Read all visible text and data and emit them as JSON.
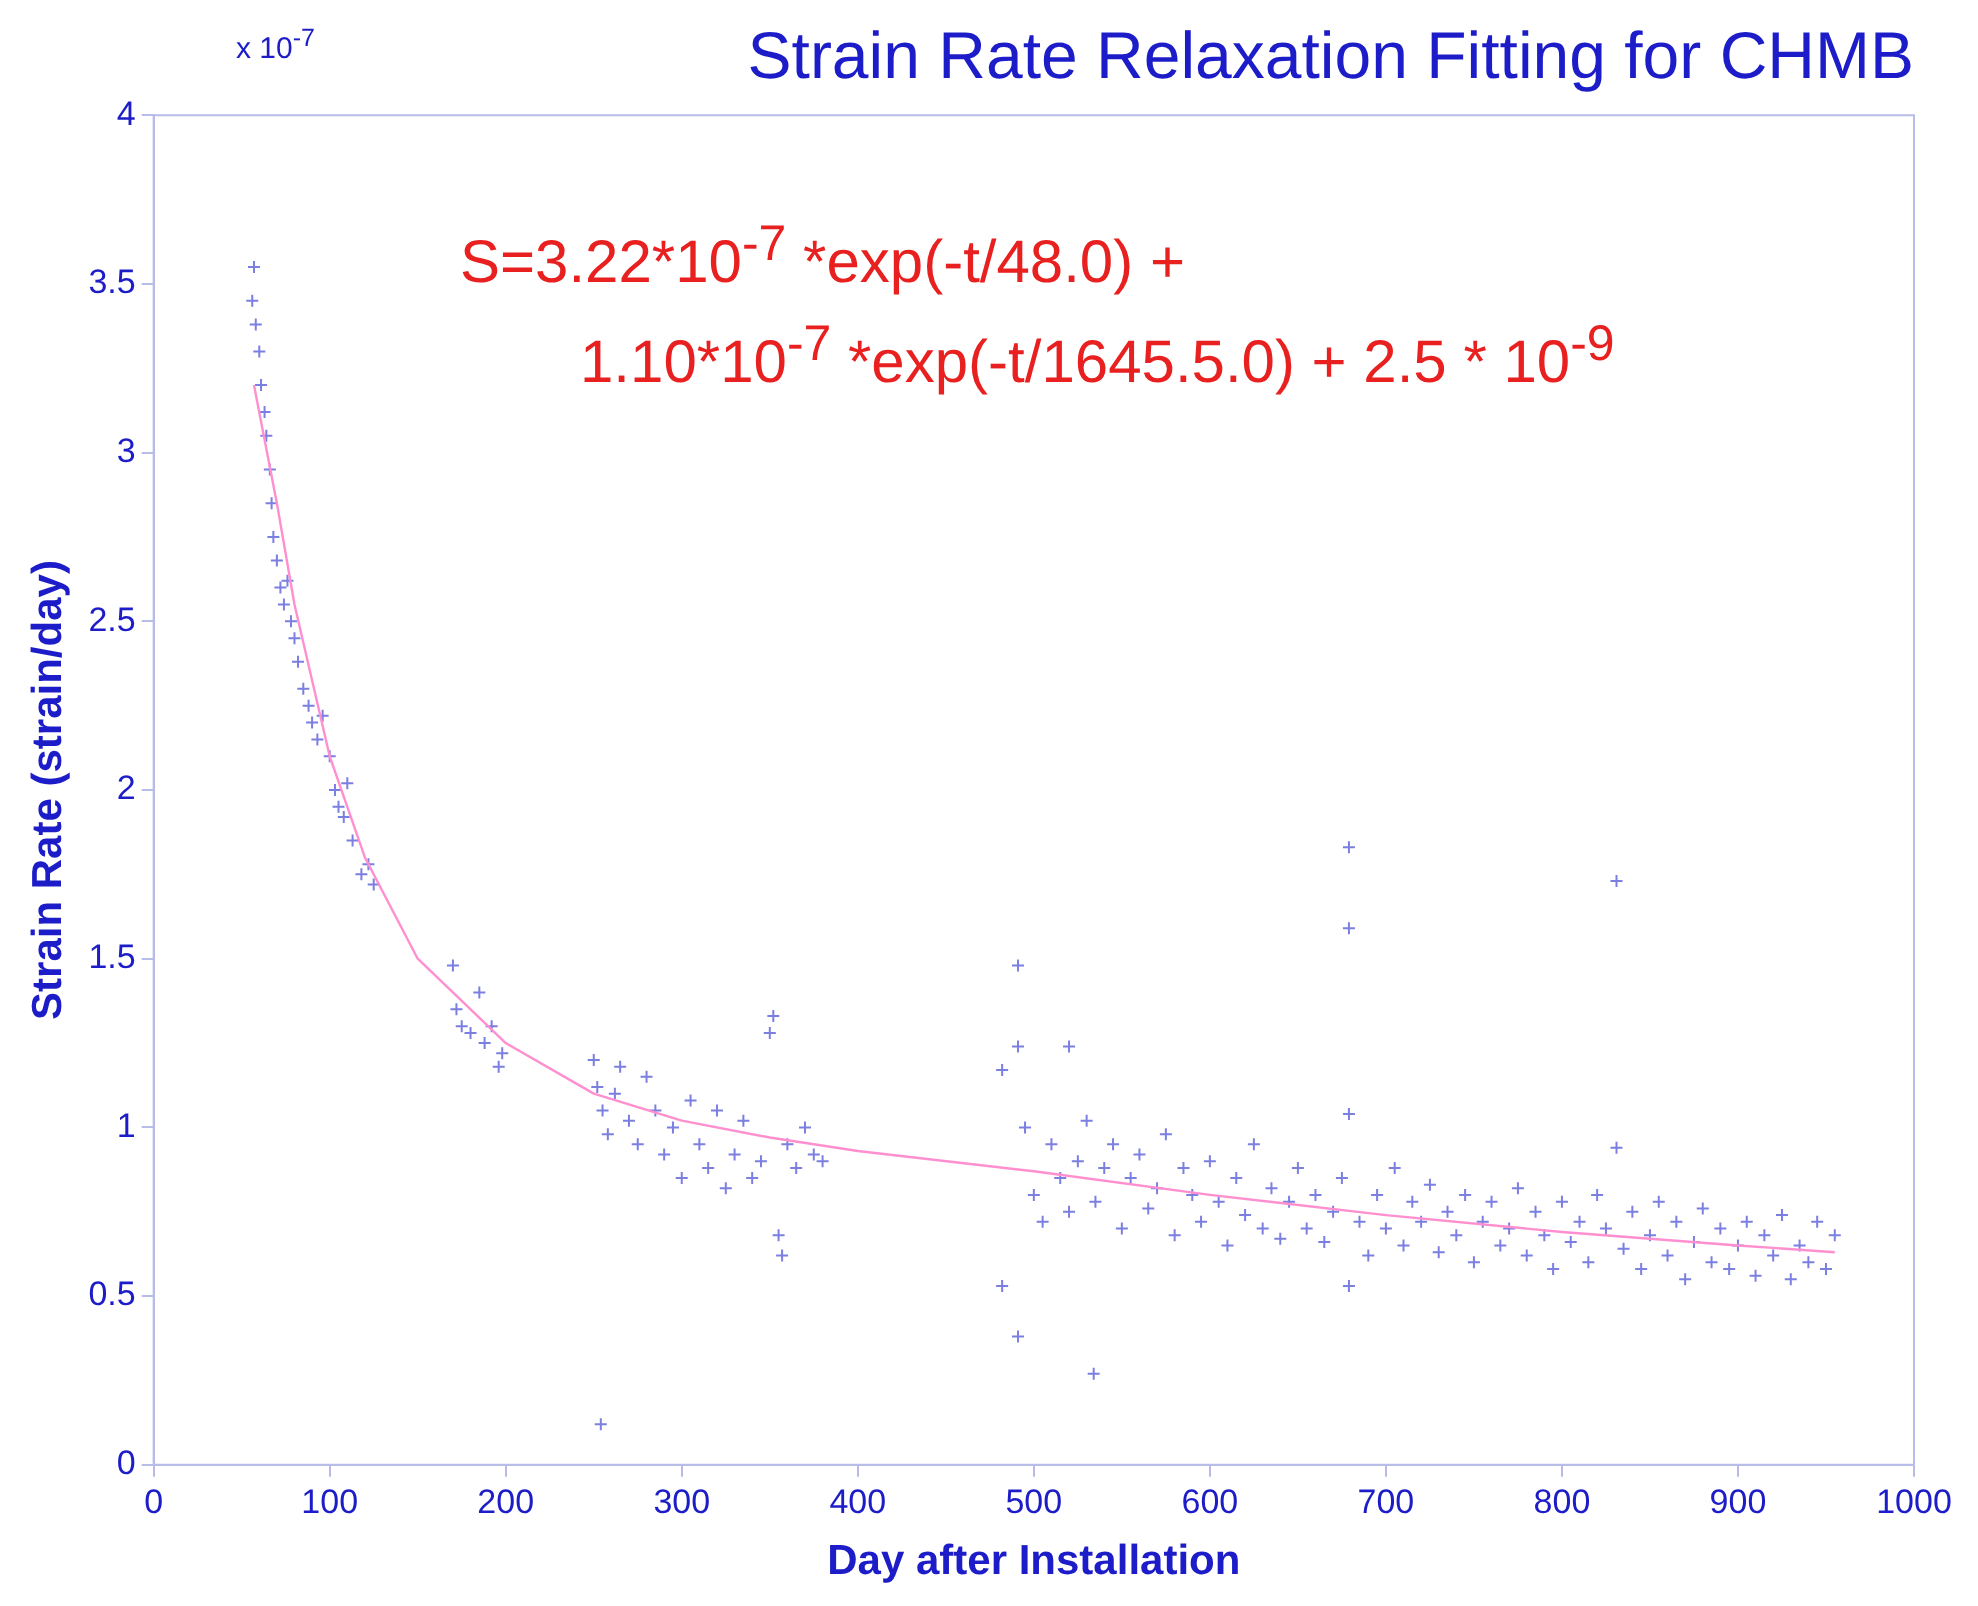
{
  "chart_data": {
    "type": "scatter",
    "title": "Strain Rate Relaxation Fitting for CHMB",
    "xlabel": "Day after Installation",
    "ylabel": "Strain Rate (strain/day)",
    "annotations": [
      "x 10$^{-7}$",
      "S=3.22*10$^{-7}$ *exp(-t/48.0) +",
      "1.10*10$^{-7}$ *exp(-t/1645.5.0) + 2.5 * 10$^{-9}$"
    ],
    "xlim": [
      0,
      1000
    ],
    "xticks": [
      0,
      100,
      200,
      300,
      400,
      500,
      600,
      700,
      800,
      900,
      1000
    ],
    "ylim": [
      0,
      4
    ],
    "yticks": [
      0,
      0.5,
      1,
      1.5,
      2,
      2.5,
      3,
      3.5,
      4
    ],
    "grid": false,
    "legend": false,
    "series": [
      {
        "color": "#7b7fe0",
        "marker": "cross",
        "x": [
          57,
          56,
          58,
          60,
          61,
          63,
          64,
          66,
          67,
          68,
          70,
          72,
          74,
          76,
          78,
          80,
          82,
          85,
          88,
          90,
          93,
          96,
          100,
          103,
          105,
          108,
          110,
          113,
          118,
          122,
          125,
          170,
          172,
          175,
          180,
          185,
          188,
          192,
          196,
          198,
          250,
          252,
          255,
          258,
          262,
          265,
          270,
          275,
          280,
          285,
          290,
          295,
          300,
          305,
          310,
          315,
          320,
          325,
          330,
          335,
          340,
          345,
          350,
          352,
          355,
          357,
          360,
          365,
          370,
          375,
          380,
          254,
          482,
          482,
          491,
          491,
          491,
          520,
          534,
          679,
          679,
          679,
          679,
          831,
          831,
          495,
          500,
          505,
          510,
          515,
          520,
          525,
          530,
          535,
          540,
          545,
          550,
          555,
          560,
          565,
          570,
          575,
          580,
          585,
          590,
          595,
          600,
          605,
          610,
          615,
          620,
          625,
          630,
          635,
          640,
          645,
          650,
          655,
          660,
          665,
          670,
          675,
          685,
          690,
          695,
          700,
          705,
          710,
          715,
          720,
          725,
          730,
          735,
          740,
          745,
          750,
          755,
          760,
          765,
          770,
          775,
          780,
          785,
          790,
          795,
          800,
          805,
          810,
          815,
          820,
          825,
          835,
          840,
          845,
          850,
          855,
          860,
          865,
          870,
          875,
          880,
          885,
          890,
          895,
          900,
          905,
          910,
          915,
          920,
          925,
          930,
          935,
          940,
          945,
          950,
          955
        ],
        "values": [
          3.55,
          3.45,
          3.38,
          3.3,
          3.2,
          3.12,
          3.05,
          2.95,
          2.85,
          2.75,
          2.68,
          2.6,
          2.55,
          2.62,
          2.5,
          2.45,
          2.38,
          2.3,
          2.25,
          2.2,
          2.15,
          2.22,
          2.1,
          2.0,
          1.95,
          1.92,
          2.02,
          1.85,
          1.75,
          1.78,
          1.72,
          1.48,
          1.35,
          1.3,
          1.28,
          1.4,
          1.25,
          1.3,
          1.18,
          1.22,
          1.2,
          1.12,
          1.05,
          0.98,
          1.1,
          1.18,
          1.02,
          0.95,
          1.15,
          1.05,
          0.92,
          1.0,
          0.85,
          1.08,
          0.95,
          0.88,
          1.05,
          0.82,
          0.92,
          1.02,
          0.85,
          0.9,
          1.28,
          1.33,
          0.68,
          0.62,
          0.95,
          0.88,
          1.0,
          0.92,
          0.9,
          0.12,
          1.17,
          0.53,
          1.48,
          1.24,
          0.38,
          1.24,
          0.27,
          1.83,
          1.59,
          1.04,
          0.53,
          1.73,
          0.94,
          1.0,
          0.8,
          0.72,
          0.95,
          0.85,
          0.75,
          0.9,
          1.02,
          0.78,
          0.88,
          0.95,
          0.7,
          0.85,
          0.92,
          0.76,
          0.82,
          0.98,
          0.68,
          0.88,
          0.8,
          0.72,
          0.9,
          0.78,
          0.65,
          0.85,
          0.74,
          0.95,
          0.7,
          0.82,
          0.67,
          0.78,
          0.88,
          0.7,
          0.8,
          0.66,
          0.75,
          0.85,
          0.72,
          0.62,
          0.8,
          0.7,
          0.88,
          0.65,
          0.78,
          0.72,
          0.83,
          0.63,
          0.75,
          0.68,
          0.8,
          0.6,
          0.72,
          0.78,
          0.65,
          0.7,
          0.82,
          0.62,
          0.75,
          0.68,
          0.58,
          0.78,
          0.66,
          0.72,
          0.6,
          0.8,
          0.7,
          0.64,
          0.75,
          0.58,
          0.68,
          0.78,
          0.62,
          0.72,
          0.55,
          0.66,
          0.76,
          0.6,
          0.7,
          0.58,
          0.65,
          0.72,
          0.56,
          0.68,
          0.62,
          0.74,
          0.55,
          0.65,
          0.6,
          0.72,
          0.58,
          0.68
        ]
      },
      {
        "type": "line",
        "color": "#ff8fcf",
        "marker": "none",
        "x": [
          57,
          70,
          80,
          100,
          120,
          150,
          200,
          250,
          300,
          350,
          400,
          500,
          600,
          700,
          800,
          900,
          955
        ],
        "values": [
          3.2,
          2.85,
          2.55,
          2.1,
          1.8,
          1.5,
          1.25,
          1.1,
          1.02,
          0.97,
          0.93,
          0.87,
          0.8,
          0.74,
          0.69,
          0.65,
          0.63
        ]
      }
    ]
  }
}
